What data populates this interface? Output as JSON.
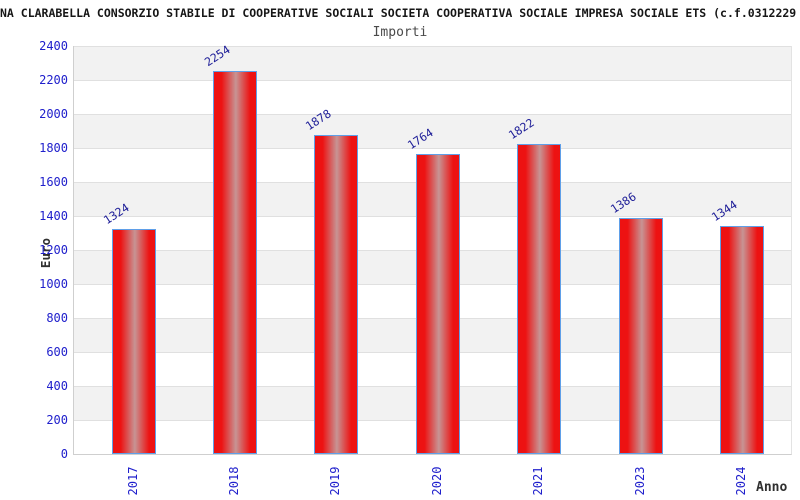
{
  "chart_data": {
    "type": "bar",
    "title": "NA CLARABELLA CONSORZIO STABILE DI COOPERATIVE SOCIALI SOCIETA COOPERATIVA SOCIALE IMPRESA SOCIALE ETS (c.f.0312229",
    "subtitle": "Importi",
    "xlabel": "Anno",
    "ylabel": "Euro",
    "categories": [
      "2017",
      "2018",
      "2019",
      "2020",
      "2021",
      "2023",
      "2024"
    ],
    "values": [
      1324,
      2254,
      1878,
      1764,
      1822,
      1386,
      1344
    ],
    "ylim": [
      0,
      2400
    ],
    "ytick_step": 200,
    "grid": true,
    "legend": false,
    "colors": {
      "title_text": "#161616",
      "subtitle_text": "#4a4a4a",
      "axis_title_text": "#303030",
      "tick_label_blue": "#2020cc",
      "value_label_blue": "#202099",
      "bar_red": "#ed1212",
      "bar_highlight": "#c79494",
      "bar_border_blue": "#5f9fe8",
      "band_gray": "#f2f2f2",
      "gridline_gray": "#e0e0e0",
      "axis_line_gray": "#cfcfcf",
      "background": "#ffffff"
    }
  }
}
